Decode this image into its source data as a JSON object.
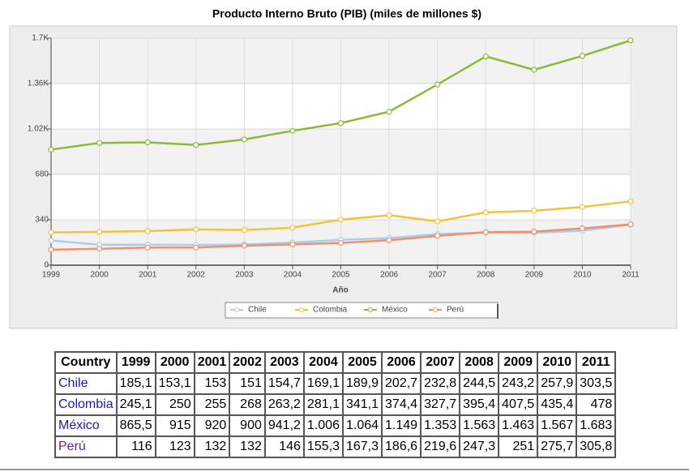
{
  "chart_data": {
    "type": "line",
    "title": "Producto Interno Bruto (PIB) (miles de millones $)",
    "x_label": "Año",
    "categories": [
      "1999",
      "2000",
      "2001",
      "2002",
      "2003",
      "2004",
      "2005",
      "2006",
      "2007",
      "2008",
      "2009",
      "2010",
      "2011"
    ],
    "series": [
      {
        "name": "Chile",
        "color": "#a9cdec",
        "values": [
          185.1,
          153.1,
          153,
          151,
          154.7,
          169.1,
          189.9,
          202.7,
          232.8,
          244.5,
          243.2,
          257.9,
          303.5
        ]
      },
      {
        "name": "Colombia",
        "color": "#f2c23c",
        "values": [
          245.1,
          250,
          255,
          268,
          263.2,
          281.1,
          341.1,
          374.4,
          327.7,
          395.4,
          407.5,
          435.4,
          478
        ]
      },
      {
        "name": "México",
        "color": "#8db83a",
        "values": [
          865.5,
          915,
          920,
          900,
          941.2,
          1006,
          1064,
          1149,
          1353,
          1563,
          1463,
          1567,
          1683
        ]
      },
      {
        "name": "Perú",
        "color": "#f2906a",
        "values": [
          116,
          123,
          132,
          132,
          146,
          155.3,
          167.3,
          186.6,
          219.6,
          247.3,
          251,
          275.7,
          305.8
        ]
      }
    ],
    "ylim": [
      0,
      1700
    ],
    "yticks": [
      0,
      340,
      680,
      {
        "value": 1020,
        "label": "1.02K"
      },
      {
        "value": 1360,
        "label": "1.36K"
      },
      {
        "value": 1700,
        "label": "1.7K"
      }
    ],
    "grid": true
  },
  "table": {
    "header": [
      "Country",
      "1999",
      "2000",
      "2001",
      "2002",
      "2003",
      "2004",
      "2005",
      "2006",
      "2007",
      "2008",
      "2009",
      "2010",
      "2011"
    ],
    "rows": [
      [
        "Chile",
        "185,1",
        "153,1",
        "153",
        "151",
        "154,7",
        "169,1",
        "189,9",
        "202,7",
        "232,8",
        "244,5",
        "243,2",
        "257,9",
        "303,5"
      ],
      [
        "Colombia",
        "245,1",
        "250",
        "255",
        "268",
        "263,2",
        "281,1",
        "341,1",
        "374,4",
        "327,7",
        "395,4",
        "407,5",
        "435,4",
        "478"
      ],
      [
        "México",
        "865,5",
        "915",
        "920",
        "900",
        "941,2",
        "1.006",
        "1.064",
        "1.149",
        "1.353",
        "1.563",
        "1.463",
        "1.567",
        "1.683"
      ],
      [
        "Perú",
        "116",
        "123",
        "132",
        "132",
        "146",
        "155,3",
        "167,3",
        "186,6",
        "219,6",
        "247,3",
        "251",
        "275,7",
        "305,8"
      ]
    ]
  }
}
